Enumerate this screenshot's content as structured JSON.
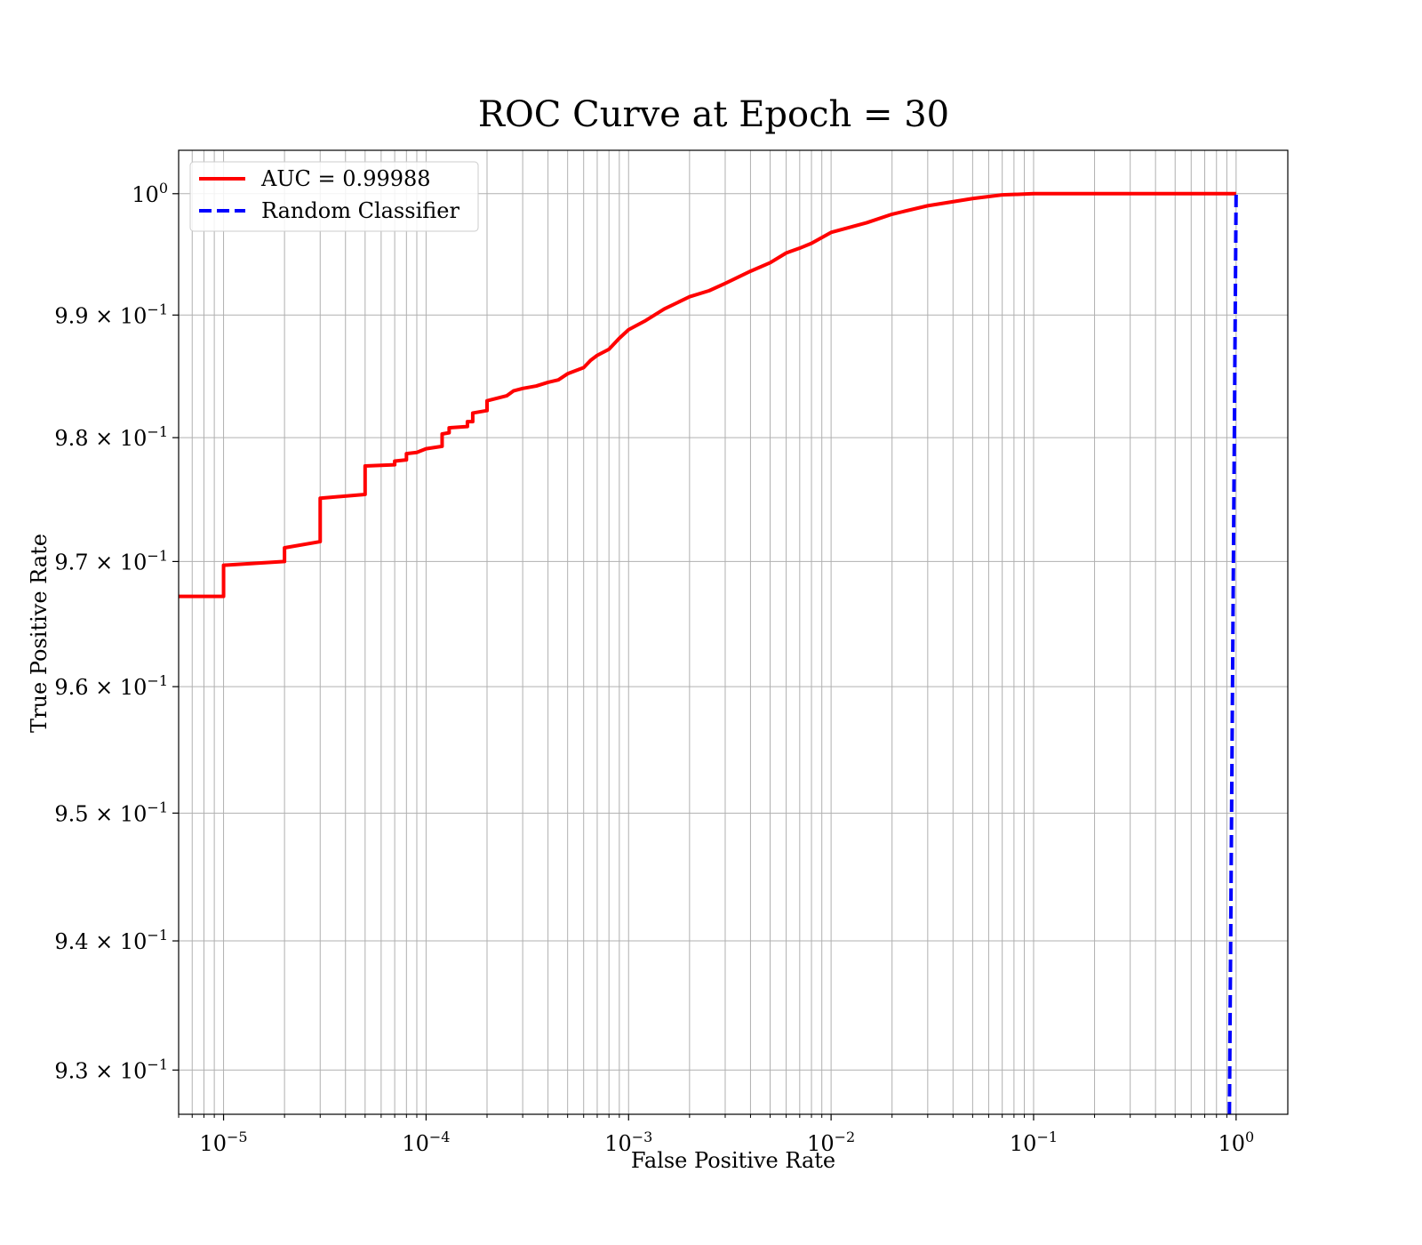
{
  "chart_data": {
    "type": "line",
    "title": "ROC Curve at Epoch = 30",
    "xlabel": "False Positive Rate",
    "ylabel": "True Positive Rate",
    "xscale": "log",
    "yscale": "log",
    "xlim": [
      6e-06,
      1.8
    ],
    "ylim": [
      0.9266,
      1.0036
    ],
    "grid": "on (major and minor)",
    "legend_position": "upper-left",
    "x_ticks": [
      {
        "value": 1e-05,
        "base": "10",
        "exp": "−5"
      },
      {
        "value": 0.0001,
        "base": "10",
        "exp": "−4"
      },
      {
        "value": 0.001,
        "base": "10",
        "exp": "−3"
      },
      {
        "value": 0.01,
        "base": "10",
        "exp": "−2"
      },
      {
        "value": 0.1,
        "base": "10",
        "exp": "−1"
      },
      {
        "value": 1,
        "base": "10",
        "exp": "0"
      }
    ],
    "y_ticks": [
      {
        "value": 1.0,
        "mant": "",
        "base": "10",
        "exp": "0"
      },
      {
        "value": 0.99,
        "mant": "9.9 × ",
        "base": "10",
        "exp": "−1"
      },
      {
        "value": 0.98,
        "mant": "9.8 × ",
        "base": "10",
        "exp": "−1"
      },
      {
        "value": 0.97,
        "mant": "9.7 × ",
        "base": "10",
        "exp": "−1"
      },
      {
        "value": 0.96,
        "mant": "9.6 × ",
        "base": "10",
        "exp": "−1"
      },
      {
        "value": 0.95,
        "mant": "9.5 × ",
        "base": "10",
        "exp": "−1"
      },
      {
        "value": 0.94,
        "mant": "9.4 × ",
        "base": "10",
        "exp": "−1"
      },
      {
        "value": 0.93,
        "mant": "9.3 × ",
        "base": "10",
        "exp": "−1"
      }
    ],
    "series": [
      {
        "name": "AUC = 0.99988",
        "color": "#ff0000",
        "style": "solid",
        "points": [
          [
            6e-06,
            0.9672
          ],
          [
            1e-05,
            0.9672
          ],
          [
            1e-05,
            0.9697
          ],
          [
            2e-05,
            0.97
          ],
          [
            2e-05,
            0.9711
          ],
          [
            3e-05,
            0.9716
          ],
          [
            3e-05,
            0.9751
          ],
          [
            5e-05,
            0.9754
          ],
          [
            5e-05,
            0.9777
          ],
          [
            7e-05,
            0.9778
          ],
          [
            7e-05,
            0.9781
          ],
          [
            8e-05,
            0.9782
          ],
          [
            8e-05,
            0.9787
          ],
          [
            9e-05,
            0.9788
          ],
          [
            0.0001,
            0.9791
          ],
          [
            0.00012,
            0.9793
          ],
          [
            0.00012,
            0.9803
          ],
          [
            0.00013,
            0.9804
          ],
          [
            0.00013,
            0.9808
          ],
          [
            0.00016,
            0.9809
          ],
          [
            0.00016,
            0.9813
          ],
          [
            0.00017,
            0.9813
          ],
          [
            0.00017,
            0.982
          ],
          [
            0.0002,
            0.9822
          ],
          [
            0.0002,
            0.983
          ],
          [
            0.00025,
            0.9834
          ],
          [
            0.00027,
            0.9838
          ],
          [
            0.0003,
            0.984
          ],
          [
            0.00035,
            0.9842
          ],
          [
            0.0004,
            0.9845
          ],
          [
            0.00045,
            0.9847
          ],
          [
            0.0005,
            0.9852
          ],
          [
            0.0006,
            0.9857
          ],
          [
            0.00065,
            0.9863
          ],
          [
            0.0007,
            0.9867
          ],
          [
            0.0008,
            0.9872
          ],
          [
            0.0009,
            0.9881
          ],
          [
            0.001,
            0.9888
          ],
          [
            0.0012,
            0.9895
          ],
          [
            0.0015,
            0.9905
          ],
          [
            0.002,
            0.9915
          ],
          [
            0.0025,
            0.992
          ],
          [
            0.003,
            0.9926
          ],
          [
            0.004,
            0.9936
          ],
          [
            0.005,
            0.9943
          ],
          [
            0.006,
            0.9951
          ],
          [
            0.007,
            0.9955
          ],
          [
            0.008,
            0.9959
          ],
          [
            0.01,
            0.9968
          ],
          [
            0.015,
            0.9976
          ],
          [
            0.02,
            0.9983
          ],
          [
            0.03,
            0.999
          ],
          [
            0.05,
            0.9996
          ],
          [
            0.07,
            0.9999
          ],
          [
            0.1,
            1.0
          ],
          [
            1,
            1.0
          ]
        ]
      },
      {
        "name": "Random Classifier",
        "color": "#0000ff",
        "style": "dashed",
        "points": [
          [
            0.9266,
            0.9266
          ],
          [
            1.0,
            1.0
          ]
        ]
      }
    ]
  }
}
